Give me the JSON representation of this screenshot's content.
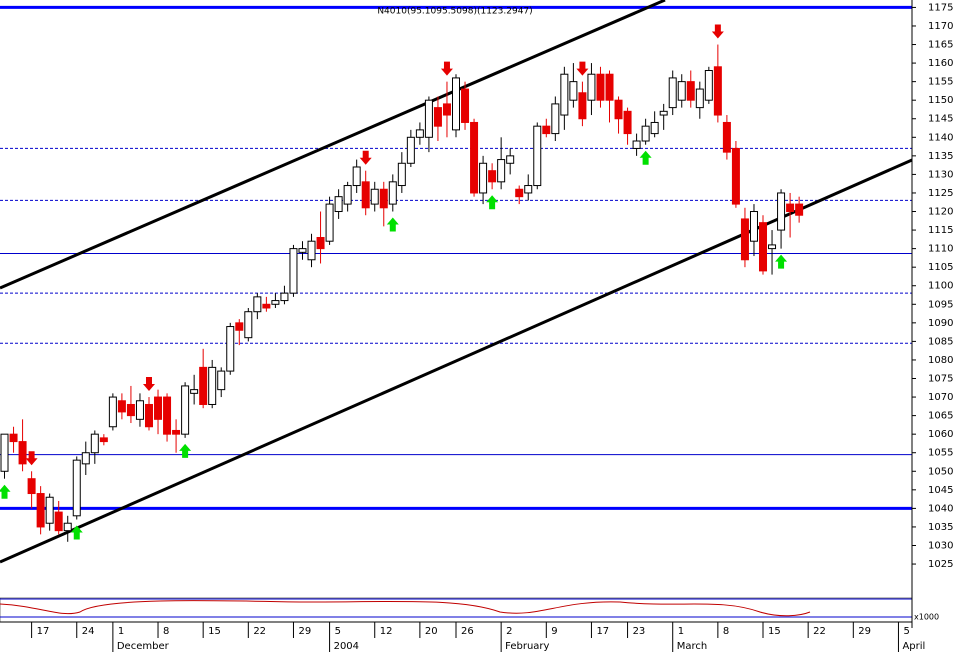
{
  "chart_data": {
    "type": "candlestick",
    "title": "N4010(95.1095.5098)(1123.2947)",
    "indicator_label": "x1000",
    "open": [
      1050,
      1060,
      1058,
      1048,
      1044,
      1036,
      1039,
      1034,
      1038,
      1052,
      1055,
      1059,
      1062,
      1069,
      1068,
      1064,
      1068,
      1070,
      1070,
      1061,
      1060,
      1071,
      1078,
      1068,
      1072,
      1077,
      1090,
      1086,
      1093,
      1095,
      1095,
      1096,
      1098,
      1109,
      1107,
      1113,
      1112,
      1120,
      1122,
      1127,
      1128,
      1122,
      1126,
      1122,
      1127,
      1133,
      1140,
      1140,
      1148,
      1149,
      1142,
      1153,
      1144,
      1125,
      1131,
      1128,
      1133,
      1126,
      1125,
      1127,
      1143,
      1141,
      1146,
      1150,
      1152,
      1150,
      1157,
      1157,
      1150,
      1147,
      1137,
      1139,
      1141,
      1146,
      1148,
      1150,
      1155,
      1148,
      1150,
      1159,
      1144,
      1137,
      1118,
      1112,
      1117,
      1110,
      1115,
      1122,
      1122
    ],
    "high": [
      1060,
      1062,
      1064,
      1050,
      1046,
      1044,
      1042,
      1038,
      1054,
      1058,
      1061,
      1060,
      1071,
      1071,
      1073,
      1071,
      1070,
      1072,
      1071,
      1064,
      1074,
      1076,
      1083,
      1080,
      1078,
      1090,
      1091,
      1094,
      1098,
      1097,
      1098,
      1100,
      1111,
      1112,
      1114,
      1120,
      1124,
      1126,
      1128,
      1134,
      1131,
      1128,
      1128,
      1130,
      1136,
      1142,
      1144,
      1151,
      1151,
      1155,
      1157,
      1155,
      1145,
      1135,
      1133,
      1140,
      1137,
      1127,
      1130,
      1144,
      1145,
      1151,
      1159,
      1160,
      1155,
      1160,
      1159,
      1158,
      1151,
      1148,
      1141,
      1145,
      1147,
      1149,
      1158,
      1157,
      1158,
      1155,
      1159,
      1165,
      1146,
      1139,
      1121,
      1122,
      1119,
      1115,
      1126,
      1125,
      1124
    ],
    "low": [
      1048,
      1055,
      1050,
      1040,
      1033,
      1034,
      1033,
      1031,
      1037,
      1049,
      1052,
      1057,
      1061,
      1064,
      1063,
      1062,
      1061,
      1060,
      1058,
      1055,
      1059,
      1068,
      1067,
      1067,
      1070,
      1076,
      1084,
      1085,
      1091,
      1093,
      1094,
      1095,
      1097,
      1107,
      1105,
      1106,
      1111,
      1118,
      1120,
      1125,
      1119,
      1120,
      1116,
      1120,
      1125,
      1132,
      1138,
      1136,
      1139,
      1140,
      1140,
      1142,
      1124,
      1122,
      1126,
      1126,
      1130,
      1122,
      1123,
      1126,
      1140,
      1139,
      1142,
      1148,
      1143,
      1146,
      1148,
      1144,
      1141,
      1138,
      1135,
      1138,
      1140,
      1142,
      1146,
      1148,
      1148,
      1145,
      1149,
      1144,
      1134,
      1121,
      1105,
      1108,
      1103,
      1103,
      1110,
      1113,
      1117
    ],
    "close": [
      1060,
      1058,
      1052,
      1044,
      1035,
      1043,
      1034,
      1036,
      1053,
      1055,
      1060,
      1058,
      1070,
      1066,
      1065,
      1069,
      1062,
      1064,
      1060,
      1060,
      1073,
      1072,
      1068,
      1078,
      1077,
      1089,
      1088,
      1093,
      1097,
      1094,
      1096,
      1098,
      1110,
      1110,
      1112,
      1110,
      1122,
      1124,
      1127,
      1132,
      1121,
      1126,
      1121,
      1128,
      1133,
      1140,
      1142,
      1150,
      1143,
      1146,
      1156,
      1144,
      1125,
      1133,
      1128,
      1134,
      1135,
      1124,
      1127,
      1143,
      1141,
      1149,
      1157,
      1155,
      1145,
      1157,
      1150,
      1150,
      1145,
      1141,
      1139,
      1143,
      1144,
      1147,
      1156,
      1155,
      1150,
      1153,
      1158,
      1146,
      1136,
      1122,
      1107,
      1120,
      1104,
      1111,
      1125,
      1120,
      1119
    ],
    "up_color": "#ffffff",
    "down_color": "#e60000",
    "up_arrows": [
      0,
      8,
      20,
      43,
      54,
      71,
      86
    ],
    "down_arrows": [
      3,
      16,
      40,
      49,
      64,
      79
    ],
    "thick_levels": [
      1175,
      1040
    ],
    "thin_levels": [
      1108.7,
      1054.5
    ],
    "dashed_levels": [
      1137,
      1123,
      1098,
      1084.5
    ],
    "xlim": [
      -0.5,
      100.5
    ],
    "ylim": [
      1020,
      1177
    ],
    "yticks": [
      1025,
      1030,
      1035,
      1040,
      1045,
      1050,
      1055,
      1060,
      1065,
      1070,
      1075,
      1080,
      1085,
      1090,
      1095,
      1100,
      1105,
      1110,
      1115,
      1120,
      1125,
      1130,
      1135,
      1140,
      1145,
      1150,
      1155,
      1160,
      1165,
      1170,
      1175
    ],
    "xticks": [
      {
        "value": 3,
        "label": "17"
      },
      {
        "value": 8,
        "label": "24"
      },
      {
        "value": 12,
        "label": "1"
      },
      {
        "value": 17,
        "label": "8"
      },
      {
        "value": 22,
        "label": "15"
      },
      {
        "value": 27,
        "label": "22"
      },
      {
        "value": 32,
        "label": "29"
      },
      {
        "value": 36,
        "label": "5"
      },
      {
        "value": 41,
        "label": "12"
      },
      {
        "value": 46,
        "label": "20"
      },
      {
        "value": 50,
        "label": "26"
      },
      {
        "value": 55,
        "label": "2"
      },
      {
        "value": 60,
        "label": "9"
      },
      {
        "value": 65,
        "label": "17"
      },
      {
        "value": 69,
        "label": "23"
      },
      {
        "value": 74,
        "label": "1"
      },
      {
        "value": 79,
        "label": "8"
      },
      {
        "value": 84,
        "label": "15"
      },
      {
        "value": 89,
        "label": "22"
      },
      {
        "value": 94,
        "label": "29"
      },
      {
        "value": 99,
        "label": "5"
      }
    ],
    "month_ticks": [
      {
        "value": 12,
        "label": "December"
      },
      {
        "value": 36,
        "label": "2004"
      },
      {
        "value": 55,
        "label": "February"
      },
      {
        "value": 74,
        "label": "March"
      },
      {
        "value": 99,
        "label": "April"
      }
    ]
  }
}
